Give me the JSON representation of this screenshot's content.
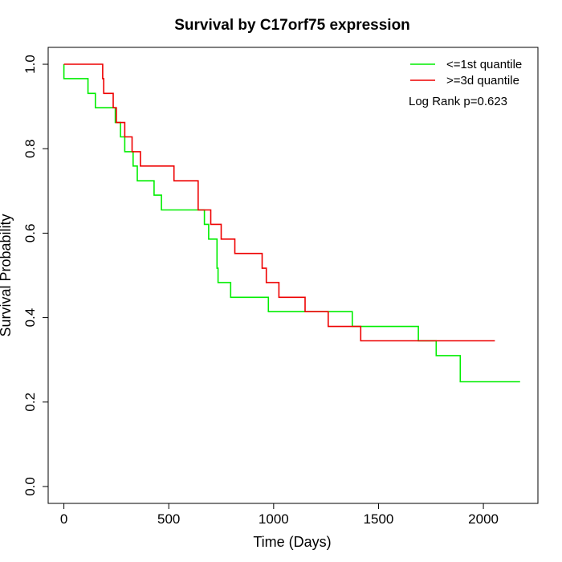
{
  "chart_data": {
    "type": "line",
    "title": "Survival by C17orf75 expression",
    "xlabel": "Time (Days)",
    "ylabel": "Survival Probability",
    "xlim": [
      -75,
      2260
    ],
    "ylim": [
      -0.04,
      1.04
    ],
    "xticks": [
      0,
      500,
      1000,
      1500,
      2000
    ],
    "yticks": [
      0.0,
      0.2,
      0.4,
      0.6,
      0.8,
      1.0
    ],
    "xtick_labels": [
      "0",
      "500",
      "1000",
      "1500",
      "2000"
    ],
    "ytick_labels": [
      "0.0",
      "0.2",
      "0.4",
      "0.6",
      "0.8",
      "1.0"
    ],
    "grid": false,
    "legend_position": "top-right",
    "annotation": "Log Rank p=0.623",
    "series": [
      {
        "name": "<=1st quantile",
        "color": "#00ee00",
        "x": [
          0,
          0,
          115,
          115,
          150,
          150,
          245,
          245,
          270,
          270,
          290,
          290,
          330,
          330,
          350,
          350,
          365,
          365,
          430,
          430,
          465,
          465,
          670,
          670,
          690,
          690,
          730,
          730,
          735,
          735,
          795,
          795,
          975,
          975,
          1375,
          1375,
          1690,
          1690,
          1775,
          1775,
          1890,
          1890,
          2175
        ],
        "y": [
          1.0,
          0.966,
          0.966,
          0.931,
          0.931,
          0.897,
          0.897,
          0.862,
          0.862,
          0.828,
          0.828,
          0.793,
          0.793,
          0.759,
          0.759,
          0.724,
          0.724,
          0.724,
          0.724,
          0.69,
          0.69,
          0.655,
          0.655,
          0.621,
          0.621,
          0.586,
          0.586,
          0.517,
          0.517,
          0.483,
          0.483,
          0.448,
          0.448,
          0.414,
          0.414,
          0.379,
          0.379,
          0.345,
          0.345,
          0.31,
          0.31,
          0.248,
          0.248
        ]
      },
      {
        "name": ">=3d quantile",
        "color": "#ee0000",
        "x": [
          0,
          185,
          185,
          190,
          190,
          235,
          235,
          250,
          250,
          290,
          290,
          325,
          325,
          365,
          365,
          525,
          525,
          640,
          640,
          700,
          700,
          750,
          750,
          815,
          815,
          945,
          945,
          965,
          965,
          1025,
          1025,
          1150,
          1150,
          1260,
          1260,
          1415,
          1415,
          2055
        ],
        "y": [
          1.0,
          1.0,
          0.966,
          0.966,
          0.931,
          0.931,
          0.897,
          0.897,
          0.862,
          0.862,
          0.828,
          0.828,
          0.793,
          0.793,
          0.759,
          0.759,
          0.724,
          0.724,
          0.655,
          0.655,
          0.621,
          0.621,
          0.586,
          0.586,
          0.552,
          0.552,
          0.517,
          0.517,
          0.483,
          0.483,
          0.448,
          0.448,
          0.414,
          0.414,
          0.379,
          0.379,
          0.345,
          0.345
        ]
      }
    ]
  }
}
